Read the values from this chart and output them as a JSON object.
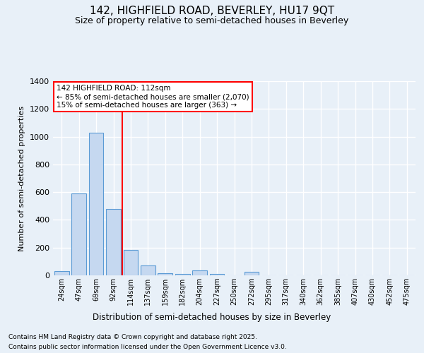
{
  "title_line1": "142, HIGHFIELD ROAD, BEVERLEY, HU17 9QT",
  "title_line2": "Size of property relative to semi-detached houses in Beverley",
  "xlabel": "Distribution of semi-detached houses by size in Beverley",
  "ylabel": "Number of semi-detached properties",
  "categories": [
    "24sqm",
    "47sqm",
    "69sqm",
    "92sqm",
    "114sqm",
    "137sqm",
    "159sqm",
    "182sqm",
    "204sqm",
    "227sqm",
    "250sqm",
    "272sqm",
    "295sqm",
    "317sqm",
    "340sqm",
    "362sqm",
    "385sqm",
    "407sqm",
    "430sqm",
    "452sqm",
    "475sqm"
  ],
  "values": [
    30,
    590,
    1030,
    480,
    185,
    70,
    15,
    10,
    35,
    10,
    0,
    25,
    0,
    0,
    0,
    0,
    0,
    0,
    0,
    0,
    0
  ],
  "bar_color": "#c5d8f0",
  "bar_edge_color": "#5b9bd5",
  "vline_color": "red",
  "annotation_title": "142 HIGHFIELD ROAD: 112sqm",
  "annotation_line1": "← 85% of semi-detached houses are smaller (2,070)",
  "annotation_line2": "15% of semi-detached houses are larger (363) →",
  "annotation_box_color": "white",
  "annotation_box_edge_color": "red",
  "ylim": [
    0,
    1400
  ],
  "yticks": [
    0,
    200,
    400,
    600,
    800,
    1000,
    1200,
    1400
  ],
  "footer_line1": "Contains HM Land Registry data © Crown copyright and database right 2025.",
  "footer_line2": "Contains public sector information licensed under the Open Government Licence v3.0.",
  "bg_color": "#e8f0f8",
  "plot_bg_color": "#e8f0f8",
  "grid_color": "white"
}
